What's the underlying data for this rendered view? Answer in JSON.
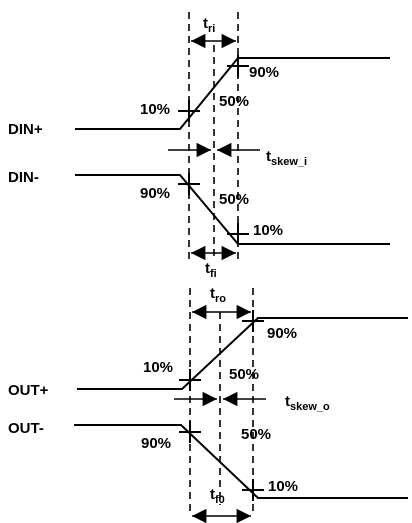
{
  "signals": {
    "din_plus": "DIN+",
    "din_minus": "DIN-",
    "out_plus": "OUT+",
    "out_minus": "OUT-"
  },
  "levels": {
    "p10": "10%",
    "p50": "50%",
    "p90": "90%"
  },
  "timing": {
    "t": "t",
    "ri": "ri",
    "fi": "fi",
    "skew_i": "skew_i",
    "ro": "ro",
    "f0": "f0",
    "skew_o": "skew_o"
  }
}
